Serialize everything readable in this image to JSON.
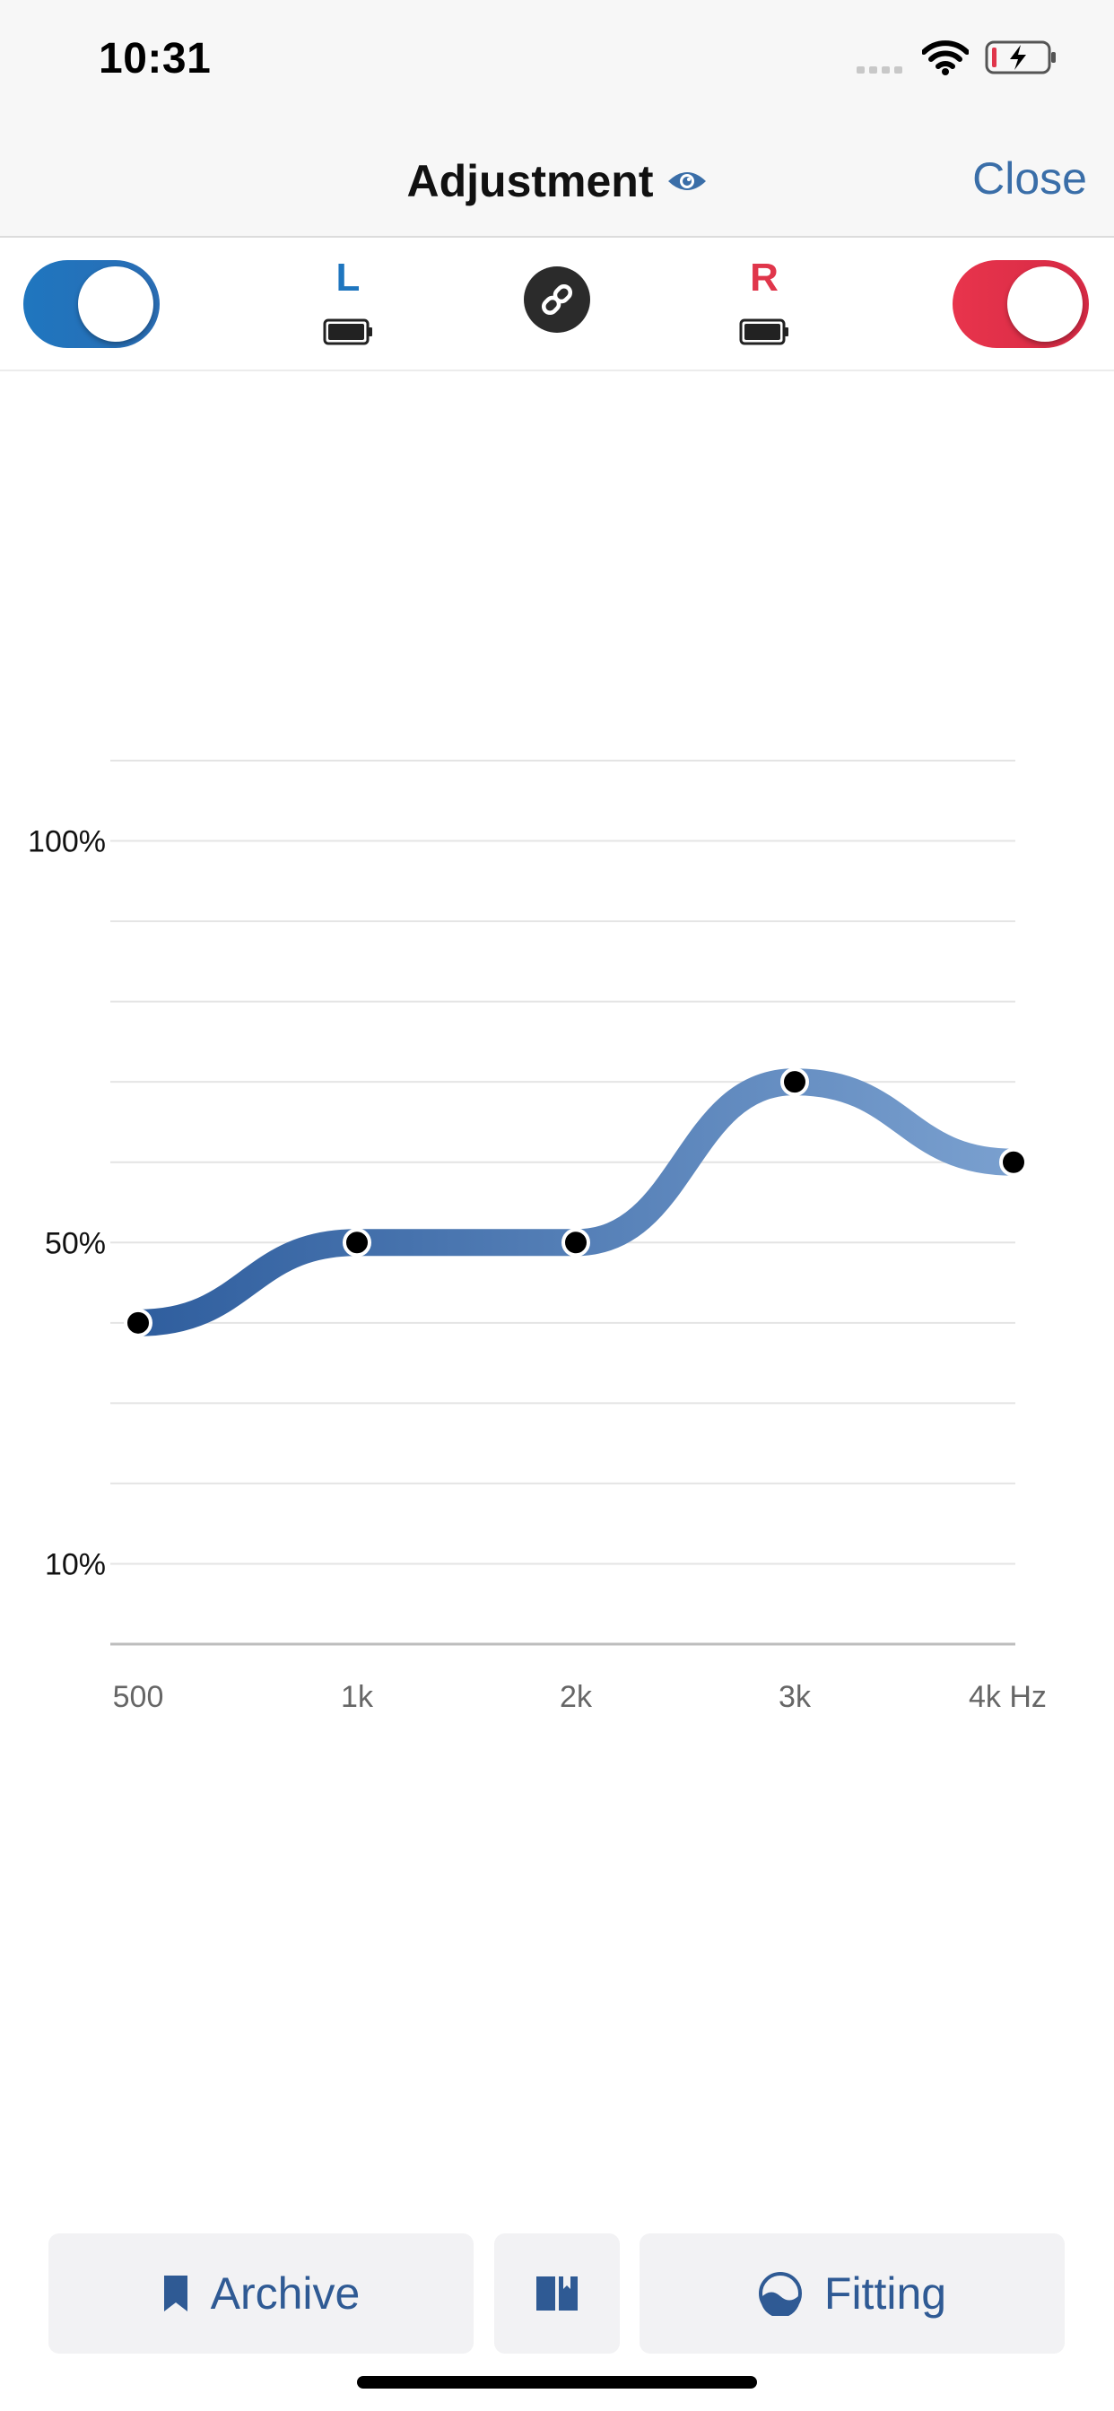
{
  "status_bar": {
    "time": "10:31"
  },
  "nav": {
    "title": "Adjustment",
    "close_label": "Close"
  },
  "devices": {
    "left": {
      "label": "L",
      "enabled": true,
      "color": "#1f76bf"
    },
    "right": {
      "label": "R",
      "enabled": true,
      "color": "#e0364b"
    }
  },
  "chart_data": {
    "type": "line",
    "categories": [
      "500",
      "1k",
      "2k",
      "3k",
      "4k Hz"
    ],
    "series": [
      {
        "values": [
          40,
          50,
          50,
          70,
          60
        ]
      }
    ],
    "y_tick_labels": [
      {
        "label": "100%",
        "value": 100
      },
      {
        "label": "50%",
        "value": 50
      },
      {
        "label": "10%",
        "value": 10
      }
    ],
    "ylim": [
      0,
      110
    ],
    "grid": true,
    "line_color_start": "#2f5e9e",
    "line_color_end": "#7aa0cf"
  },
  "bottom": {
    "archive_label": "Archive",
    "fitting_label": "Fitting"
  }
}
